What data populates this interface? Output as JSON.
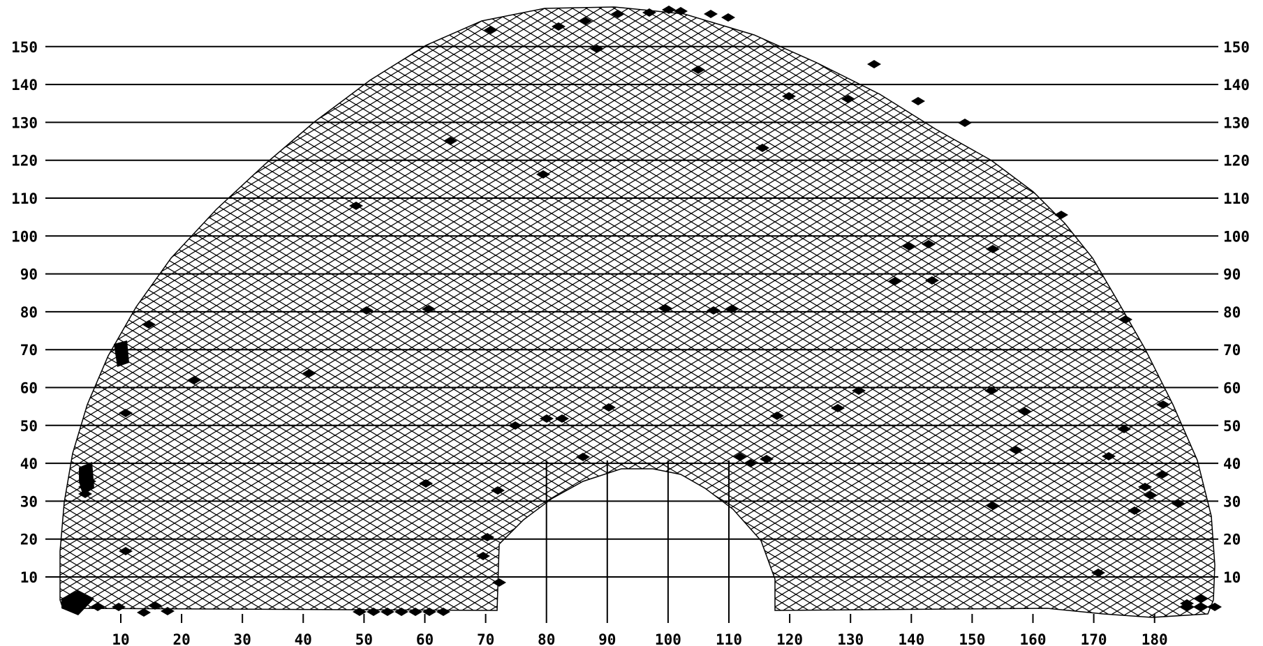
{
  "figure": {
    "colors": {
      "ink": "#000000",
      "background": "#ffffff"
    },
    "x_ticks": [
      "10",
      "20",
      "30",
      "40",
      "50",
      "60",
      "70",
      "80",
      "90",
      "100",
      "110",
      "120",
      "130",
      "140",
      "150",
      "160",
      "170",
      "180"
    ],
    "y_ticks": [
      "10",
      "20",
      "30",
      "40",
      "50",
      "60",
      "70",
      "80",
      "90",
      "100",
      "110",
      "120",
      "130",
      "140",
      "150"
    ]
  }
}
